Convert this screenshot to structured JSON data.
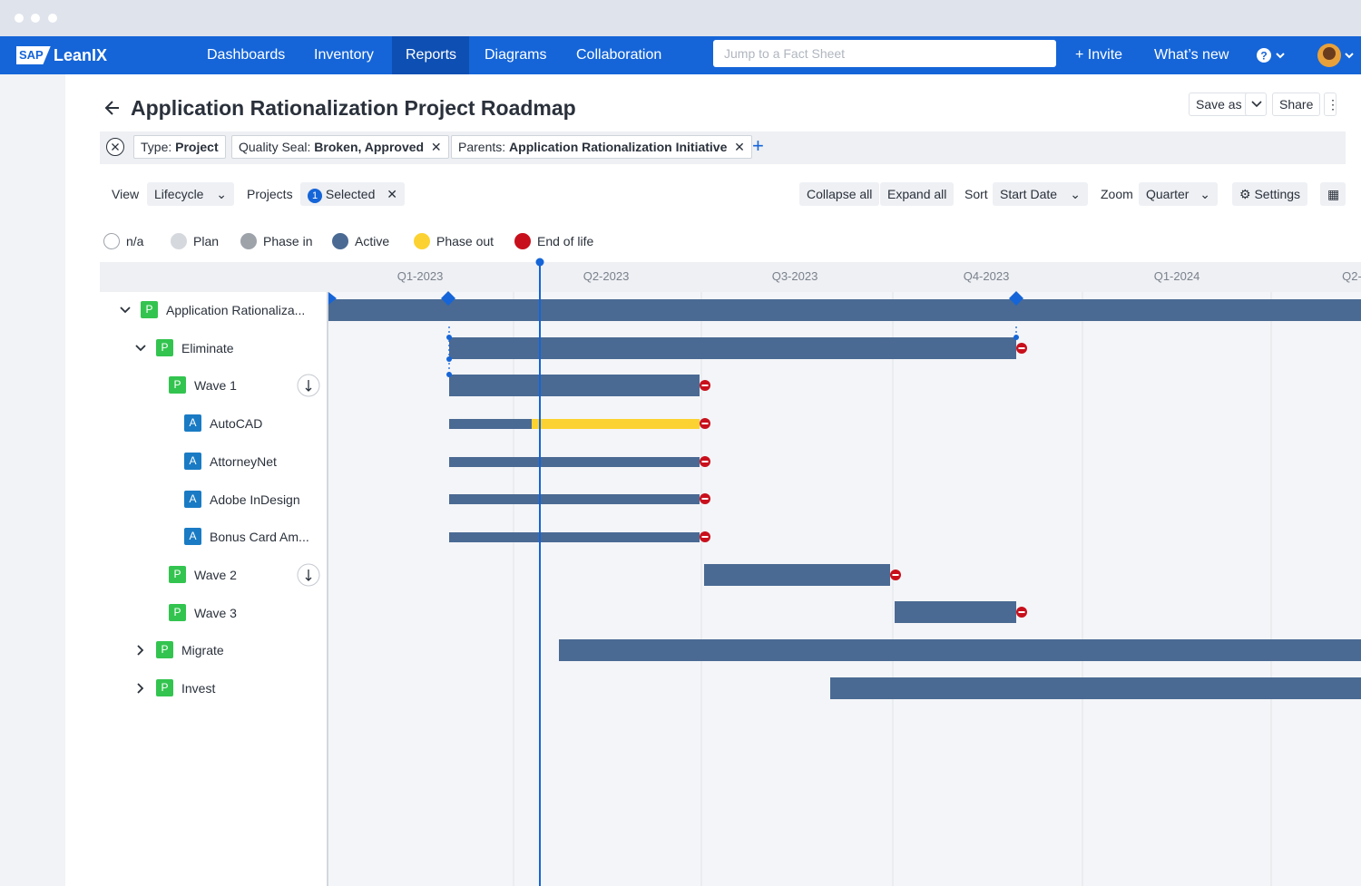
{
  "nav": {
    "logo_mark": "SAP",
    "logo": "LeanIX",
    "items": [
      "Dashboards",
      "Inventory",
      "Reports",
      "Diagrams",
      "Collaboration"
    ],
    "search_placeholder": "Jump to a Fact Sheet",
    "invite": "+ Invite",
    "whats_new": "What’s new"
  },
  "header": {
    "title": "Application Rationalization Project Roadmap",
    "save_as": "Save as",
    "share": "Share"
  },
  "filters": [
    {
      "key": "Type:",
      "value": "Project"
    },
    {
      "key": "Quality Seal:",
      "value": "Broken, Approved"
    },
    {
      "key": "Parents:",
      "value": "Application Rationalization Initiative"
    }
  ],
  "toolbar": {
    "view_label": "View",
    "view": "Lifecycle",
    "projects_label": "Projects",
    "selected_count": "1",
    "selected": "Selected",
    "collapse_all": "Collapse all",
    "expand_all": "Expand all",
    "sort_label": "Sort",
    "sort": "Start Date",
    "zoom_label": "Zoom",
    "zoom": "Quarter",
    "settings": "Settings"
  },
  "legend": [
    {
      "label": "n/a",
      "color": "#ffffff"
    },
    {
      "label": "Plan",
      "color": "#d5d8dd"
    },
    {
      "label": "Phase in",
      "color": "#9ea3aa"
    },
    {
      "label": "Active",
      "color": "#4a6a93"
    },
    {
      "label": "Phase out",
      "color": "#fcd232"
    },
    {
      "label": "End of life",
      "color": "#c8101c"
    }
  ],
  "timeline": {
    "quarters": [
      "Q1-2023",
      "Q2-2023",
      "Q3-2023",
      "Q4-2023",
      "Q1-2024",
      "Q2-"
    ]
  },
  "tree": [
    {
      "badge": "P",
      "name": "Application Rationaliza..."
    },
    {
      "badge": "P",
      "name": "Eliminate"
    },
    {
      "badge": "P",
      "name": "Wave 1"
    },
    {
      "badge": "A",
      "name": "AutoCAD"
    },
    {
      "badge": "A",
      "name": "AttorneyNet"
    },
    {
      "badge": "A",
      "name": "Adobe InDesign"
    },
    {
      "badge": "A",
      "name": "Bonus Card Am..."
    },
    {
      "badge": "P",
      "name": "Wave 2"
    },
    {
      "badge": "P",
      "name": "Wave 3"
    },
    {
      "badge": "P",
      "name": "Migrate"
    },
    {
      "badge": "P",
      "name": "Invest"
    }
  ]
}
